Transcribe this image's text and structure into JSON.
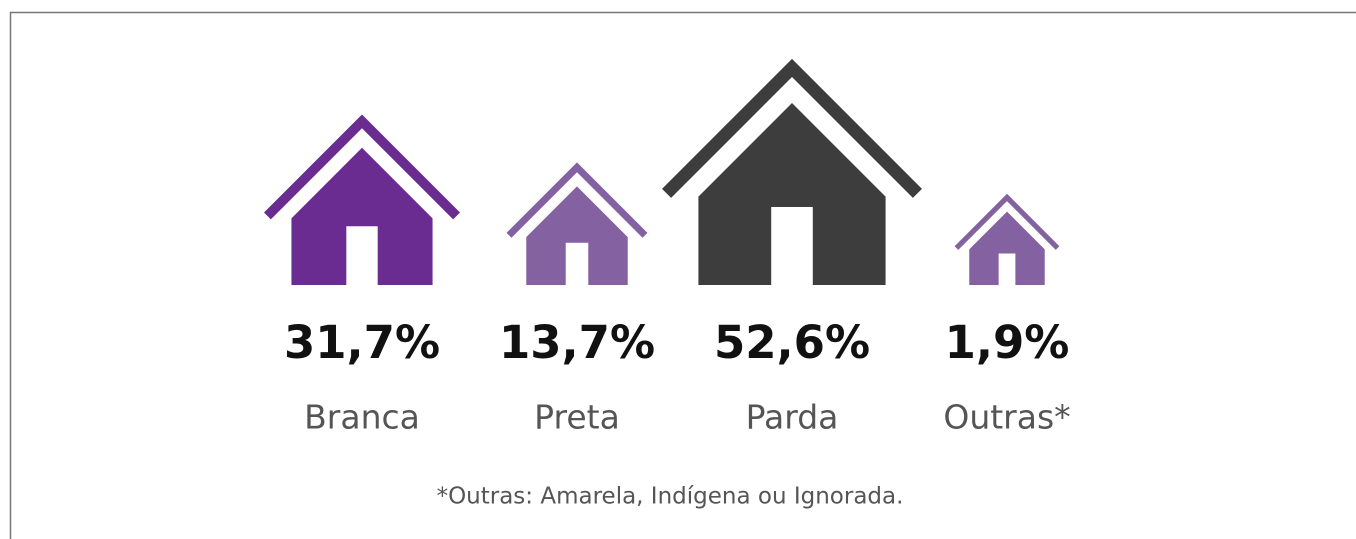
{
  "chart_data": {
    "type": "pictograph",
    "categories": [
      "Branca",
      "Preta",
      "Parda",
      "Outras*"
    ],
    "values": [
      31.7,
      13.7,
      52.6,
      1.9
    ],
    "value_labels": [
      "31,7%",
      "13,7%",
      "52,6%",
      "1,9%"
    ],
    "colors": [
      "#6a2c91",
      "#8461a0",
      "#3d3d3d",
      "#8461a0"
    ],
    "note": "*Outras: Amarela, Indígena ou Ignorada."
  }
}
